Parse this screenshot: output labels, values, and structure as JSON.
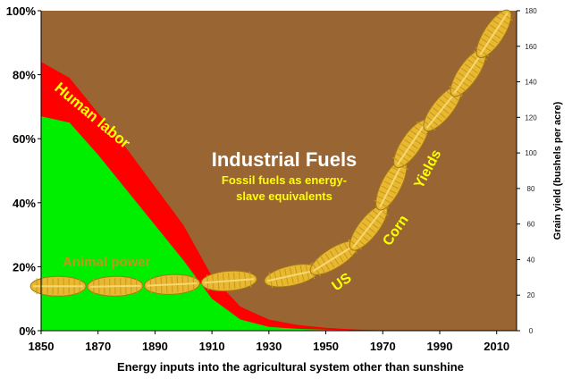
{
  "chart_data": {
    "type": "area",
    "x": [
      1850,
      1860,
      1870,
      1880,
      1890,
      1900,
      1910,
      1920,
      1930,
      1940,
      1950,
      1960,
      1970,
      1980,
      1990,
      2000,
      2010,
      2017
    ],
    "xlim": [
      1850,
      2017
    ],
    "x_ticks": [
      "1850",
      "1870",
      "1890",
      "1910",
      "1930",
      "1950",
      "1970",
      "1990",
      "2010"
    ],
    "ylim": [
      0,
      100
    ],
    "y_ticks": [
      "0%",
      "20%",
      "40%",
      "60%",
      "80%",
      "100%"
    ],
    "series": [
      {
        "name": "Animal power",
        "color": "#00ee00",
        "values": [
          67,
          65,
          55,
          44,
          33,
          22,
          10,
          3.5,
          1.2,
          0.6,
          0.3,
          0.1,
          0,
          0,
          0,
          0,
          0,
          0
        ]
      },
      {
        "name": "Human labor",
        "color": "#ff0000",
        "values": [
          17,
          14,
          13,
          13,
          12,
          11,
          7,
          4,
          2.3,
          1.2,
          0.6,
          0.3,
          0.1,
          0,
          0,
          0,
          0,
          0
        ]
      },
      {
        "name": "Industrial Fuels",
        "color": "#996633",
        "values": [
          16,
          21,
          32,
          43,
          55,
          67,
          83,
          92.5,
          96.5,
          98.2,
          99.1,
          99.6,
          99.9,
          100,
          100,
          100,
          100,
          100
        ]
      }
    ],
    "secondary_axis": {
      "label": "Grain yield (bushels per acre)",
      "ylim": [
        0,
        180
      ],
      "ticks": [
        "0",
        "20",
        "40",
        "60",
        "80",
        "100",
        "120",
        "140",
        "160",
        "180"
      ]
    },
    "yield_series": {
      "name": "US Corn Yields",
      "color": "#e8b830",
      "points": [
        {
          "x": 1856,
          "y": 25
        },
        {
          "x": 1876,
          "y": 25
        },
        {
          "x": 1896,
          "y": 26
        },
        {
          "x": 1916,
          "y": 28
        },
        {
          "x": 1938,
          "y": 31
        },
        {
          "x": 1953,
          "y": 41
        },
        {
          "x": 1965,
          "y": 58
        },
        {
          "x": 1973,
          "y": 82
        },
        {
          "x": 1980,
          "y": 105
        },
        {
          "x": 1991,
          "y": 125
        },
        {
          "x": 2000,
          "y": 145
        },
        {
          "x": 2009,
          "y": 167
        }
      ]
    },
    "annotations": {
      "human_labor": "Human labor",
      "animal_power": "Animal power",
      "industrial_fuels": "Industrial Fuels",
      "fossil_line1": "Fossil fuels as energy-",
      "fossil_line2": "slave equivalents",
      "us": "US",
      "corn": "Corn",
      "yields": "Yields"
    },
    "caption": "Energy inputs into the agricultural system other than sunshine"
  }
}
